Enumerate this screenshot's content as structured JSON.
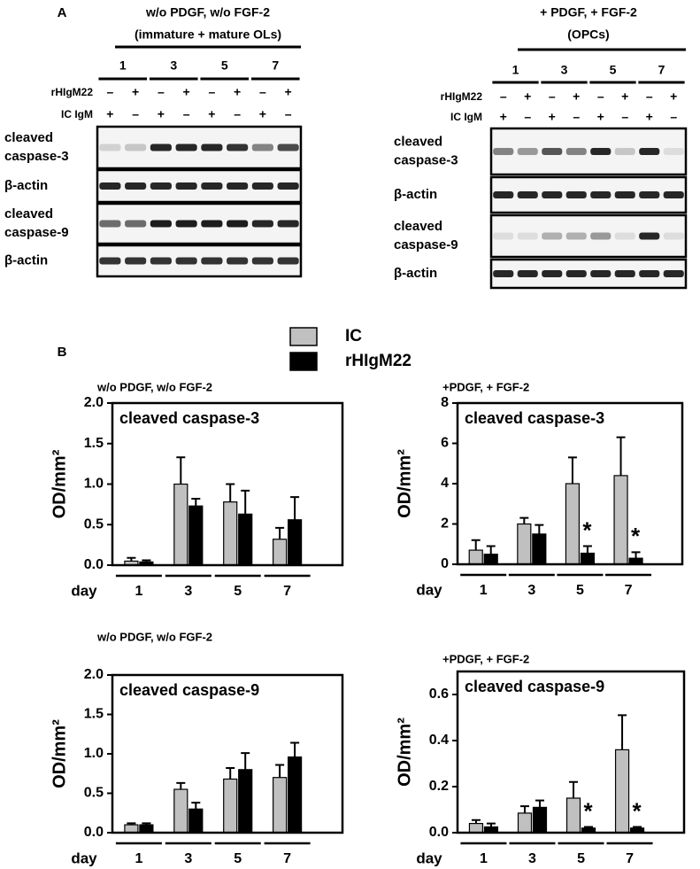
{
  "panel_a": {
    "label": "A",
    "blots": [
      {
        "title": [
          "w/o PDGF, w/o FGF-2",
          "(immature + mature OLs)"
        ],
        "days": [
          "1",
          "3",
          "5",
          "7"
        ],
        "rows": [
          {
            "label": "rHIgM22",
            "signs": [
              "–",
              "+",
              "–",
              "+",
              "–",
              "+",
              "–",
              "+"
            ]
          },
          {
            "label": "IC IgM",
            "signs": [
              "+",
              "–",
              "+",
              "–",
              "+",
              "–",
              "+",
              "–"
            ]
          }
        ],
        "panels": [
          [
            "cleaved",
            "caspase-3"
          ],
          [
            "β-actin"
          ],
          [
            "cleaved",
            "caspase-9"
          ],
          [
            "β-actin"
          ]
        ]
      },
      {
        "title": [
          "+ PDGF, + FGF-2",
          "(OPCs)"
        ],
        "days": [
          "1",
          "3",
          "5",
          "7"
        ],
        "rows": [
          {
            "label": "rHIgM22",
            "signs": [
              "–",
              "+",
              "–",
              "+",
              "–",
              "+",
              "–",
              "+"
            ]
          },
          {
            "label": "IC IgM",
            "signs": [
              "+",
              "–",
              "+",
              "–",
              "+",
              "–",
              "+",
              "–"
            ]
          }
        ],
        "panels": [
          [
            "cleaved",
            "caspase-3"
          ],
          [
            "β-actin"
          ],
          [
            "cleaved",
            "caspase-9"
          ],
          [
            "β-actin"
          ]
        ]
      }
    ]
  },
  "panel_b": {
    "label": "B"
  },
  "chart_data": [
    {
      "type": "bar",
      "subtitle": "w/o PDGF, w/o FGF-2",
      "title": "cleaved caspase-3",
      "ylabel": "OD/mm²",
      "xlabel": "day",
      "categories": [
        "1",
        "3",
        "5",
        "7"
      ],
      "series": [
        {
          "name": "IC",
          "color": "#c0c0c0",
          "values": [
            0.05,
            1.0,
            0.78,
            0.32
          ],
          "errors": [
            0.04,
            0.33,
            0.22,
            0.14
          ]
        },
        {
          "name": "rHIgM22",
          "color": "#000000",
          "values": [
            0.04,
            0.73,
            0.63,
            0.56
          ],
          "errors": [
            0.02,
            0.09,
            0.29,
            0.28
          ]
        }
      ],
      "ylim": [
        0,
        2
      ],
      "yticks": [
        {
          "value": 0,
          "label": "0.0"
        },
        0.5,
        {
          "value": 1,
          "label": "1.0"
        },
        1.5,
        {
          "value": 2,
          "label": "2.0"
        }
      ]
    },
    {
      "type": "bar",
      "subtitle": "+PDGF, + FGF-2",
      "title": "cleaved caspase-3",
      "ylabel": "OD/mm²",
      "xlabel": "day",
      "categories": [
        "1",
        "3",
        "5",
        "7"
      ],
      "series": [
        {
          "name": "IC",
          "color": "#c0c0c0",
          "values": [
            0.7,
            2.0,
            4.0,
            4.4
          ],
          "errors": [
            0.5,
            0.3,
            1.3,
            1.9
          ]
        },
        {
          "name": "rHIgM22",
          "color": "#000000",
          "values": [
            0.5,
            1.5,
            0.55,
            0.3
          ],
          "errors": [
            0.4,
            0.45,
            0.35,
            0.3
          ]
        }
      ],
      "annotations": [
        {
          "text": "*",
          "x": "5"
        },
        {
          "text": "*",
          "x": "7"
        }
      ],
      "ylim": [
        0,
        8
      ],
      "yticks": [
        0,
        2,
        4,
        6,
        8
      ]
    },
    {
      "type": "bar",
      "subtitle": "w/o PDGF, w/o FGF-2",
      "title": "cleaved caspase-9",
      "ylabel": "OD/mm²",
      "xlabel": "day",
      "categories": [
        "1",
        "3",
        "5",
        "7"
      ],
      "series": [
        {
          "name": "IC",
          "color": "#c0c0c0",
          "values": [
            0.1,
            0.55,
            0.68,
            0.7
          ],
          "errors": [
            0.02,
            0.08,
            0.14,
            0.16
          ]
        },
        {
          "name": "rHIgM22",
          "color": "#000000",
          "values": [
            0.1,
            0.3,
            0.8,
            0.96
          ],
          "errors": [
            0.02,
            0.08,
            0.21,
            0.18
          ]
        }
      ],
      "ylim": [
        0,
        2
      ],
      "yticks": [
        {
          "value": 0,
          "label": "0.0"
        },
        0.5,
        {
          "value": 1,
          "label": "1.0"
        },
        1.5,
        {
          "value": 2,
          "label": "2.0"
        }
      ]
    },
    {
      "type": "bar",
      "subtitle": "+PDGF, + FGF-2",
      "title": "cleaved caspase-9",
      "ylabel": "OD/mm²",
      "xlabel": "day",
      "categories": [
        "1",
        "3",
        "5",
        "7"
      ],
      "series": [
        {
          "name": "IC",
          "color": "#c0c0c0",
          "values": [
            0.04,
            0.085,
            0.15,
            0.36
          ],
          "errors": [
            0.015,
            0.03,
            0.07,
            0.15
          ]
        },
        {
          "name": "rHIgM22",
          "color": "#000000",
          "values": [
            0.025,
            0.11,
            0.02,
            0.02
          ],
          "errors": [
            0.015,
            0.03,
            0.005,
            0.005
          ]
        }
      ],
      "annotations": [
        {
          "text": "*",
          "x": "5"
        },
        {
          "text": "*",
          "x": "7"
        }
      ],
      "ylim": [
        0,
        0.7
      ],
      "yticks": [
        {
          "value": 0,
          "label": "0.0"
        },
        0.2,
        0.4,
        0.6
      ]
    }
  ]
}
